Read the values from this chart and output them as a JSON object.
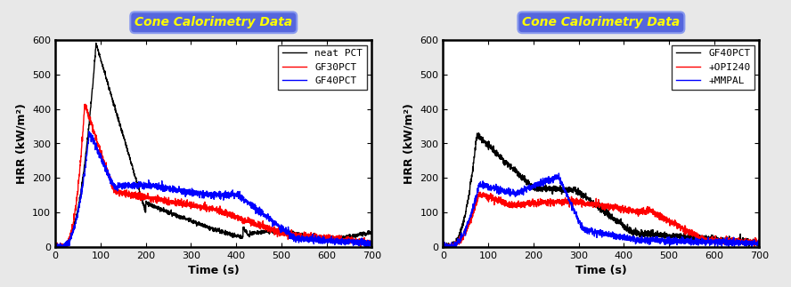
{
  "title": "Cone Calorimetry Data",
  "title_color": "#FFFF00",
  "title_bg_color": "#5566DD",
  "xlabel": "Time (s)",
  "ylabel": "HRR (kW/m²)",
  "xlim": [
    0,
    700
  ],
  "ylim": [
    0,
    600
  ],
  "xticks": [
    0,
    100,
    200,
    300,
    400,
    500,
    600,
    700
  ],
  "yticks": [
    0,
    100,
    200,
    300,
    400,
    500,
    600
  ],
  "plot1_legend": [
    "neat PCT",
    "GF30PCT",
    "GF40PCT"
  ],
  "plot1_colors": [
    "#000000",
    "#FF0000",
    "#0000FF"
  ],
  "plot2_legend": [
    "GF40PCT",
    "+OPI240",
    "+MMPAL"
  ],
  "plot2_colors": [
    "#000000",
    "#FF0000",
    "#0000FF"
  ],
  "fig_bg_color": "#E8E8E8",
  "plot_bg_color": "#FFFFFF",
  "tick_label_fontsize": 8,
  "axis_label_fontsize": 9,
  "legend_fontsize": 8
}
